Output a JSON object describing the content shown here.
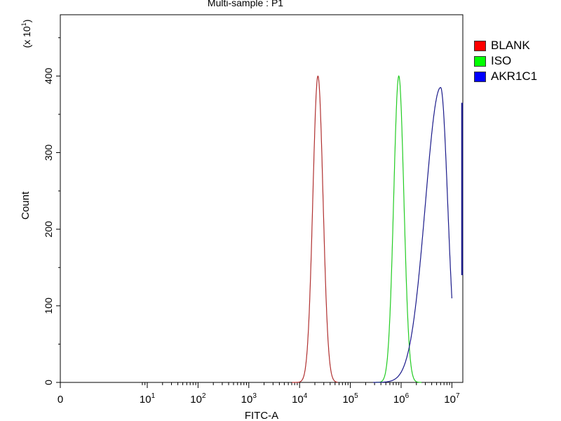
{
  "chart_data": {
    "type": "line",
    "title": "Multi-sample : P1",
    "xlabel": "FITC-A",
    "ylabel": "Count",
    "y_multiplier_label": "(x 10",
    "y_multiplier_sup": "1",
    "x_scale": "log",
    "xlim": [
      0,
      10000000
    ],
    "ylim": [
      0,
      480
    ],
    "x_ticks": [
      {
        "value": 0,
        "base": "0",
        "exp": ""
      },
      {
        "value": 10,
        "base": "10",
        "exp": "1"
      },
      {
        "value": 100,
        "base": "10",
        "exp": "2"
      },
      {
        "value": 1000,
        "base": "10",
        "exp": "3"
      },
      {
        "value": 10000,
        "base": "10",
        "exp": "4"
      },
      {
        "value": 100000,
        "base": "10",
        "exp": "5"
      },
      {
        "value": 1000000,
        "base": "10",
        "exp": "6"
      },
      {
        "value": 10000000,
        "base": "10",
        "exp": "7"
      }
    ],
    "y_ticks": [
      0,
      100,
      200,
      300,
      400
    ],
    "legend_position": "right",
    "series": [
      {
        "name": "BLANK",
        "color": "#ff0000",
        "line_color": "#b03030",
        "peak_x": 23000,
        "peak_y": 400,
        "sigma_log": 0.1,
        "range_log": [
          3.85,
          4.75
        ]
      },
      {
        "name": "ISO",
        "color": "#00ff00",
        "line_color": "#22cc22",
        "peak_x": 900000,
        "peak_y": 400,
        "sigma_log": 0.1,
        "range_log": [
          5.5,
          6.4
        ]
      },
      {
        "name": "AKR1C1",
        "color": "#0000ff",
        "line_color": "#1a1a8a",
        "peak_x": 6000000,
        "peak_y": 385,
        "sigma_left_log": 0.3,
        "sigma_right_log": 0.14,
        "range_log": [
          5.45,
          7.0
        ]
      }
    ]
  }
}
